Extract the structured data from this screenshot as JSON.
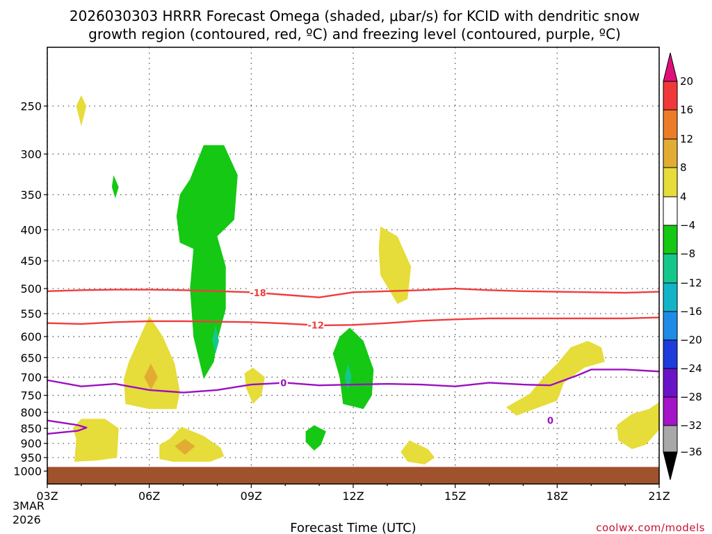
{
  "chart_data": {
    "type": "heatmap",
    "title_line1": "2026030303 HRRR Forecast Omega (shaded, μbar/s) for KCID with dendritic snow",
    "title_line2": "growth region (contoured, red, ºC) and freezing level (contoured, purple, ºC)",
    "xlabel": "Forecast Time (UTC)",
    "credit": "coolwx.com/models",
    "x_ticks": [
      {
        "hour": 0,
        "label": "03Z"
      },
      {
        "hour": 3,
        "label": "06Z"
      },
      {
        "hour": 6,
        "label": "09Z"
      },
      {
        "hour": 9,
        "label": "12Z"
      },
      {
        "hour": 12,
        "label": "15Z"
      },
      {
        "hour": 15,
        "label": "18Z"
      },
      {
        "hour": 18,
        "label": "21Z"
      }
    ],
    "date_line1": "3MAR",
    "date_line2": "2026",
    "y_axis": {
      "scale": "log-pressure",
      "top_hpa": 200,
      "bottom_hpa": 1050
    },
    "y_ticks": [
      250,
      300,
      350,
      400,
      450,
      500,
      550,
      600,
      650,
      700,
      750,
      800,
      850,
      900,
      950,
      1000
    ],
    "ground_hpa": 1000,
    "colorbar": {
      "unit": "μbar/s",
      "levels": [
        "20",
        "16",
        "12",
        "8",
        "4",
        "−4",
        "−8",
        "−12",
        "−16",
        "−20",
        "−24",
        "−28",
        "−32",
        "−36"
      ],
      "colors": [
        "#e0107a",
        "#f03a3a",
        "#ec7c28",
        "#e2ac34",
        "#e6dc3a",
        "#ffffff",
        "#14c814",
        "#14c88c",
        "#14b4c8",
        "#1e8ce6",
        "#1e3cdc",
        "#6a14c8",
        "#a414c8",
        "#a8a8a8",
        "#000000"
      ]
    },
    "dgz_contours": [
      {
        "label": "-18",
        "label_hour": 6.2,
        "points": [
          [
            0,
            505
          ],
          [
            1,
            503
          ],
          [
            2,
            502
          ],
          [
            3,
            502
          ],
          [
            4,
            503
          ],
          [
            5,
            505
          ],
          [
            6,
            507
          ],
          [
            7,
            512
          ],
          [
            8,
            517
          ],
          [
            9,
            507
          ],
          [
            10,
            505
          ],
          [
            11,
            503
          ],
          [
            12,
            500
          ],
          [
            13,
            503
          ],
          [
            14,
            505
          ],
          [
            15,
            506
          ],
          [
            16,
            507
          ],
          [
            17,
            508
          ],
          [
            18,
            506
          ]
        ]
      },
      {
        "label": "-12",
        "label_hour": 7.9,
        "points": [
          [
            0,
            570
          ],
          [
            1,
            572
          ],
          [
            2,
            568
          ],
          [
            3,
            566
          ],
          [
            4,
            566
          ],
          [
            5,
            567
          ],
          [
            6,
            568
          ],
          [
            7,
            571
          ],
          [
            8,
            575
          ],
          [
            9,
            574
          ],
          [
            10,
            570
          ],
          [
            11,
            565
          ],
          [
            12,
            562
          ],
          [
            13,
            560
          ],
          [
            14,
            560
          ],
          [
            15,
            560
          ],
          [
            16,
            560
          ],
          [
            17,
            560
          ],
          [
            18,
            558
          ]
        ]
      }
    ],
    "freezing_level_contours": [
      {
        "label": "0",
        "label_hour": 6.95,
        "points": [
          [
            0,
            708
          ],
          [
            1,
            725
          ],
          [
            2,
            718
          ],
          [
            3,
            735
          ],
          [
            4,
            742
          ],
          [
            5,
            735
          ],
          [
            6,
            720
          ],
          [
            7,
            715
          ],
          [
            8,
            722
          ],
          [
            9,
            720
          ],
          [
            10,
            718
          ],
          [
            11,
            720
          ],
          [
            12,
            725
          ],
          [
            13,
            715
          ],
          [
            14,
            720
          ],
          [
            14.8,
            722
          ],
          [
            15.6,
            695
          ],
          [
            16,
            680
          ],
          [
            17,
            680
          ],
          [
            18,
            685
          ]
        ]
      },
      {
        "label": "0",
        "label_hour": 14.8,
        "points": [
          [
            0,
            825
          ],
          [
            0.9,
            840
          ],
          [
            1.15,
            848
          ],
          [
            0.9,
            858
          ],
          [
            0,
            868
          ]
        ]
      }
    ],
    "omega_regions": [
      {
        "value": 4,
        "points": [
          [
            1,
            240
          ],
          [
            1.15,
            250
          ],
          [
            1,
            270
          ],
          [
            0.85,
            250
          ]
        ]
      },
      {
        "value": -4,
        "points": [
          [
            1.95,
            325
          ],
          [
            2.1,
            340
          ],
          [
            2,
            355
          ],
          [
            1.9,
            340
          ]
        ]
      },
      {
        "value": -4,
        "points": [
          [
            4.6,
            290
          ],
          [
            5.2,
            290
          ],
          [
            5.6,
            325
          ],
          [
            5.5,
            385
          ],
          [
            5,
            410
          ],
          [
            5.25,
            460
          ],
          [
            5.25,
            540
          ],
          [
            5,
            610
          ],
          [
            4.9,
            660
          ],
          [
            4.6,
            705
          ],
          [
            4.3,
            600
          ],
          [
            4.2,
            500
          ],
          [
            4.3,
            430
          ],
          [
            3.9,
            420
          ],
          [
            3.8,
            380
          ],
          [
            3.9,
            350
          ],
          [
            4.2,
            330
          ]
        ]
      },
      {
        "value": -8,
        "points": [
          [
            4.95,
            575
          ],
          [
            5.05,
            610
          ],
          [
            4.95,
            640
          ],
          [
            4.85,
            610
          ]
        ]
      },
      {
        "value": 4,
        "points": [
          [
            3,
            555
          ],
          [
            3.4,
            600
          ],
          [
            3.75,
            665
          ],
          [
            3.9,
            740
          ],
          [
            3.8,
            790
          ],
          [
            3,
            790
          ],
          [
            2.3,
            775
          ],
          [
            2.25,
            705
          ],
          [
            2.4,
            660
          ]
        ]
      },
      {
        "value": 8,
        "points": [
          [
            3.05,
            665
          ],
          [
            3.25,
            700
          ],
          [
            3.05,
            735
          ],
          [
            2.85,
            700
          ]
        ]
      },
      {
        "value": 4,
        "points": [
          [
            1,
            820
          ],
          [
            1.7,
            820
          ],
          [
            2.1,
            850
          ],
          [
            2.05,
            950
          ],
          [
            1.5,
            960
          ],
          [
            0.8,
            965
          ],
          [
            0.85,
            885
          ],
          [
            0.75,
            850
          ]
        ]
      },
      {
        "value": 4,
        "points": [
          [
            3.95,
            845
          ],
          [
            4.6,
            875
          ],
          [
            5.1,
            915
          ],
          [
            5.2,
            945
          ],
          [
            4.8,
            965
          ],
          [
            3.7,
            965
          ],
          [
            3.3,
            955
          ],
          [
            3.3,
            905
          ],
          [
            3.6,
            885
          ]
        ]
      },
      {
        "value": 8,
        "points": [
          [
            4.05,
            885
          ],
          [
            4.35,
            910
          ],
          [
            4.05,
            940
          ],
          [
            3.75,
            910
          ]
        ]
      },
      {
        "value": 4,
        "points": [
          [
            6.05,
            675
          ],
          [
            6.4,
            700
          ],
          [
            6.3,
            750
          ],
          [
            6.05,
            775
          ],
          [
            5.85,
            730
          ],
          [
            5.8,
            690
          ]
        ]
      },
      {
        "value": -4,
        "points": [
          [
            7.85,
            840
          ],
          [
            8.2,
            860
          ],
          [
            8.05,
            905
          ],
          [
            7.85,
            925
          ],
          [
            7.6,
            895
          ],
          [
            7.6,
            860
          ]
        ]
      },
      {
        "value": -4,
        "points": [
          [
            8.9,
            580
          ],
          [
            9.3,
            610
          ],
          [
            9.6,
            680
          ],
          [
            9.55,
            750
          ],
          [
            9.3,
            790
          ],
          [
            8.7,
            775
          ],
          [
            8.6,
            700
          ],
          [
            8.4,
            640
          ],
          [
            8.6,
            600
          ]
        ]
      },
      {
        "value": -8,
        "points": [
          [
            8.85,
            665
          ],
          [
            8.95,
            700
          ],
          [
            8.85,
            735
          ],
          [
            8.75,
            700
          ]
        ]
      },
      {
        "value": 4,
        "points": [
          [
            9.8,
            395
          ],
          [
            10.3,
            410
          ],
          [
            10.7,
            460
          ],
          [
            10.6,
            520
          ],
          [
            10.3,
            530
          ],
          [
            9.8,
            475
          ],
          [
            9.75,
            430
          ]
        ]
      },
      {
        "value": 4,
        "points": [
          [
            10.65,
            890
          ],
          [
            11.2,
            920
          ],
          [
            11.4,
            950
          ],
          [
            11.1,
            975
          ],
          [
            10.6,
            965
          ],
          [
            10.4,
            930
          ]
        ]
      },
      {
        "value": 4,
        "points": [
          [
            15.9,
            610
          ],
          [
            16.3,
            625
          ],
          [
            16.4,
            660
          ],
          [
            15.8,
            675
          ],
          [
            15.2,
            715
          ],
          [
            15,
            765
          ],
          [
            14.2,
            795
          ],
          [
            13.8,
            810
          ],
          [
            13.5,
            785
          ],
          [
            14.2,
            745
          ],
          [
            14.6,
            700
          ],
          [
            15,
            665
          ],
          [
            15.4,
            625
          ]
        ]
      },
      {
        "value": 4,
        "points": [
          [
            18,
            770
          ],
          [
            18,
            855
          ],
          [
            17.6,
            905
          ],
          [
            17.2,
            920
          ],
          [
            16.8,
            890
          ],
          [
            16.75,
            840
          ],
          [
            17.2,
            805
          ],
          [
            17.7,
            790
          ]
        ]
      }
    ]
  }
}
